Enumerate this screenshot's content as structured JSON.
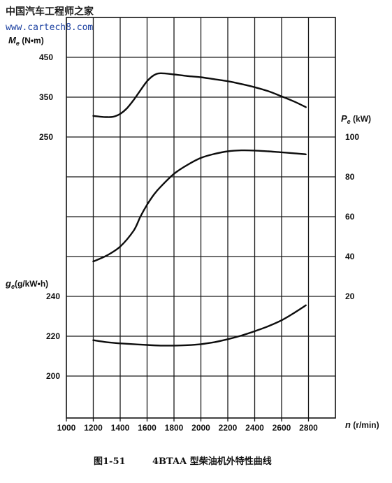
{
  "watermark": {
    "site_name": "中国汽车工程师之家",
    "url": "www.cartech8.com"
  },
  "axes": {
    "torque_label": "M",
    "torque_subscript": "e",
    "torque_unit": " (N•m)",
    "power_label": "P",
    "power_subscript": "e",
    "power_unit": " (kW)",
    "fuel_label": "g",
    "fuel_subscript": "e",
    "fuel_unit": "(g/kW•h)",
    "speed_label": "n",
    "speed_unit": " (r/min)"
  },
  "caption": {
    "figure_number": "图1-51",
    "title": "4BTAA 型柴油机外特性曲线"
  },
  "chart_data": {
    "type": "line",
    "title": "4BTAA 型柴油机外特性曲线",
    "xlabel": "n (r/min)",
    "xlim": [
      1000,
      2800
    ],
    "xticks": [
      1000,
      1200,
      1400,
      1600,
      1800,
      2000,
      2200,
      2400,
      2600,
      2800
    ],
    "grid": true,
    "torque_axis": {
      "label": "Me (N•m)",
      "side": "left",
      "ticks": [
        450,
        350,
        250
      ]
    },
    "power_axis": {
      "label": "Pe (kW)",
      "side": "right",
      "ticks": [
        100,
        80,
        60,
        40,
        20
      ]
    },
    "fuel_axis": {
      "label": "ge (g/kW•h)",
      "side": "left",
      "ticks": [
        240,
        220,
        200
      ]
    },
    "series": [
      {
        "name": "Me",
        "axis": "torque",
        "x": [
          1200,
          1250,
          1300,
          1350,
          1400,
          1450,
          1500,
          1550,
          1600,
          1650,
          1700,
          1800,
          1900,
          2000,
          2100,
          2200,
          2300,
          2400,
          2500,
          2600,
          2700,
          2780
        ],
        "y": [
          303,
          301,
          300,
          301,
          308,
          322,
          343,
          367,
          390,
          405,
          410,
          407,
          403,
          400,
          395,
          390,
          383,
          375,
          365,
          352,
          338,
          325
        ]
      },
      {
        "name": "Pe",
        "axis": "power",
        "x": [
          1200,
          1300,
          1400,
          1500,
          1550,
          1600,
          1650,
          1700,
          1800,
          1900,
          2000,
          2100,
          2200,
          2300,
          2400,
          2500,
          2600,
          2700,
          2780
        ],
        "y": [
          37.5,
          40.5,
          45,
          53,
          60,
          66,
          71,
          75,
          81.5,
          86,
          89.5,
          91.5,
          92.8,
          93.3,
          93.2,
          92.8,
          92.3,
          91.8,
          91.3
        ]
      },
      {
        "name": "ge",
        "axis": "fuel",
        "x": [
          1200,
          1300,
          1400,
          1500,
          1600,
          1700,
          1800,
          1900,
          2000,
          2100,
          2200,
          2300,
          2400,
          2500,
          2600,
          2700,
          2780
        ],
        "y": [
          218,
          217,
          216.4,
          216,
          215.6,
          215.3,
          215.3,
          215.5,
          216,
          217,
          218.5,
          220.3,
          222.5,
          225,
          228,
          232,
          235.5
        ]
      }
    ]
  }
}
